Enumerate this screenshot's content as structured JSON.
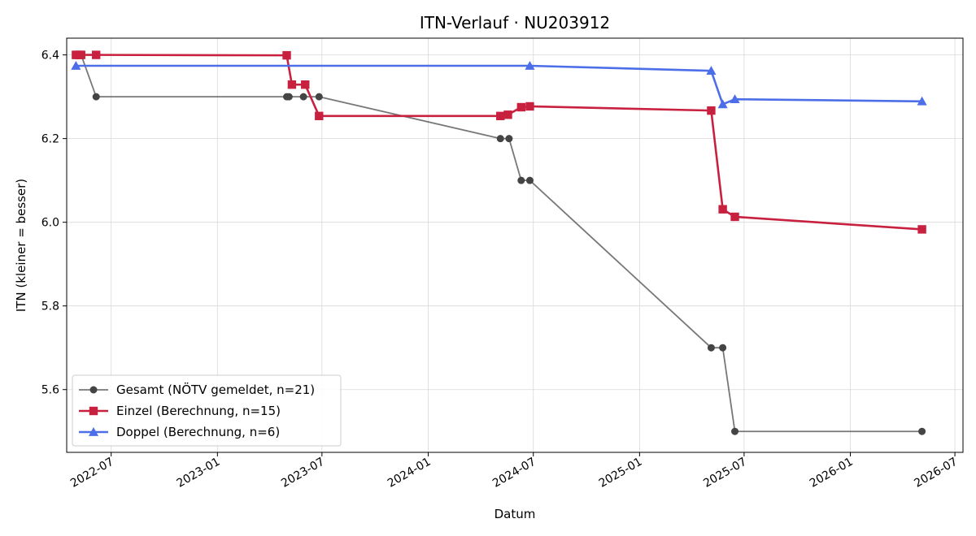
{
  "chart_data": {
    "type": "line",
    "title": "ITN-Verlauf · NU203912",
    "xlabel": "Datum",
    "ylabel": "ITN  (kleiner = besser)",
    "xlim": [
      "2022-04-15",
      "2026-07-15"
    ],
    "ylim": [
      5.45,
      6.44
    ],
    "grid": true,
    "legend_position": "lower-left",
    "x_ticks": [
      "2022-07",
      "2023-01",
      "2023-07",
      "2024-01",
      "2024-07",
      "2025-01",
      "2025-07",
      "2026-01",
      "2026-07"
    ],
    "y_ticks": [
      "5.6",
      "5.8",
      "6.0",
      "6.2",
      "6.4"
    ],
    "series": [
      {
        "name": "Gesamt (NÖTV gemeldet, n=21)",
        "color": "#555555",
        "marker": "circle",
        "points": [
          [
            "2022-05-01",
            6.4
          ],
          [
            "2022-05-04",
            6.4
          ],
          [
            "2022-05-08",
            6.4
          ],
          [
            "2022-05-10",
            6.4
          ],
          [
            "2022-06-05",
            6.3
          ],
          [
            "2023-05-01",
            6.3
          ],
          [
            "2023-05-05",
            6.3
          ],
          [
            "2023-05-30",
            6.3
          ],
          [
            "2023-06-26",
            6.3
          ],
          [
            "2024-05-05",
            6.2
          ],
          [
            "2024-05-20",
            6.2
          ],
          [
            "2024-06-10",
            6.1
          ],
          [
            "2024-06-25",
            6.1
          ],
          [
            "2025-05-05",
            5.7
          ],
          [
            "2025-05-25",
            5.7
          ],
          [
            "2025-06-15",
            5.5
          ],
          [
            "2026-05-05",
            5.5
          ]
        ]
      },
      {
        "name": "Einzel (Berechnung, n=15)",
        "color": "#c8203f",
        "marker": "square",
        "points": [
          [
            "2022-05-01",
            6.4
          ],
          [
            "2022-05-04",
            6.4
          ],
          [
            "2022-05-08",
            6.4
          ],
          [
            "2022-05-10",
            6.4
          ],
          [
            "2022-06-05",
            6.4
          ],
          [
            "2023-05-01",
            6.399
          ],
          [
            "2023-05-10",
            6.329
          ],
          [
            "2023-06-02",
            6.329
          ],
          [
            "2023-06-26",
            6.254
          ],
          [
            "2024-05-05",
            6.254
          ],
          [
            "2024-05-18",
            6.257
          ],
          [
            "2024-06-10",
            6.275
          ],
          [
            "2024-06-25",
            6.277
          ],
          [
            "2025-05-05",
            6.267
          ],
          [
            "2025-05-25",
            6.031
          ],
          [
            "2025-06-15",
            6.013
          ],
          [
            "2026-05-05",
            5.983
          ]
        ]
      },
      {
        "name": "Doppel (Berechnung, n=6)",
        "color": "#4c6ee8",
        "marker": "triangle",
        "points": [
          [
            "2022-05-01",
            6.374
          ],
          [
            "2024-06-25",
            6.374
          ],
          [
            "2025-05-05",
            6.362
          ],
          [
            "2025-05-25",
            6.282
          ],
          [
            "2025-06-15",
            6.294
          ],
          [
            "2026-05-05",
            6.289
          ]
        ]
      }
    ]
  }
}
